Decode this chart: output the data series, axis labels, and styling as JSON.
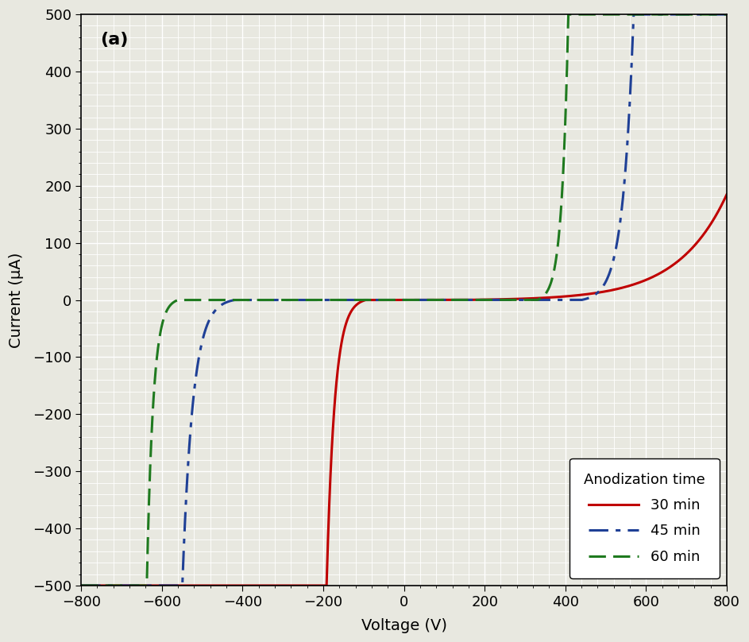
{
  "title": "(a)",
  "xlabel": "Voltage (V)",
  "ylabel": "Current (μA)",
  "xlim": [
    -800,
    800
  ],
  "ylim": [
    -500,
    500
  ],
  "xticks": [
    -800,
    -600,
    -400,
    -200,
    0,
    200,
    400,
    600,
    800
  ],
  "yticks": [
    -500,
    -400,
    -300,
    -200,
    -100,
    0,
    100,
    200,
    300,
    400,
    500
  ],
  "background_color": "#e8e8e0",
  "grid_color": "#ffffff",
  "legend_title": "Anodization time",
  "series": [
    {
      "label": "30 min",
      "color": "#c00000",
      "linestyle": "solid",
      "linewidth": 2.2
    },
    {
      "label": "45 min",
      "color": "#1f4096",
      "linestyle": "dashdot",
      "linewidth": 2.2
    },
    {
      "label": "60 min",
      "color": "#1f7a1f",
      "linestyle": "dashed",
      "linewidth": 2.2
    }
  ],
  "red_fwd_knee": 200,
  "red_fwd_scale": 85,
  "red_rev_knee": 90,
  "red_rev_scale": 22,
  "blue_fwd_knee": 440,
  "blue_fwd_scale": 28,
  "blue_rev_knee": 430,
  "blue_rev_scale": 28,
  "green_fwd_knee": 330,
  "green_fwd_scale": 18,
  "green_rev_knee": 565,
  "green_rev_scale": 18
}
